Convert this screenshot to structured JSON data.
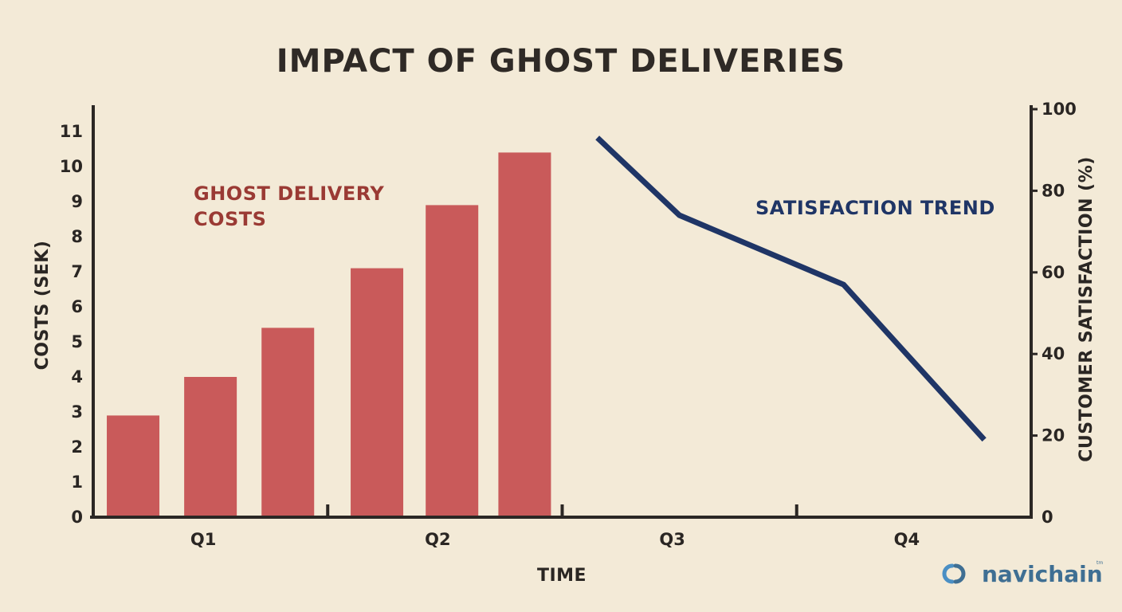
{
  "chart_data": {
    "type": "bar",
    "title": "IMPACT OF GHOST DELIVERIES",
    "xlabel": "TIME",
    "ylabel": "COSTS (SEK)",
    "y2label": "CUSTOMER SATISFACTION (%)",
    "categories": [
      "Q1",
      "Q2",
      "Q3",
      "Q4"
    ],
    "ylim": [
      0,
      11
    ],
    "y_ticks": [
      "0",
      "1",
      "2",
      "3",
      "4",
      "5",
      "6",
      "7",
      "8",
      "9",
      "10",
      "11"
    ],
    "y2lim": [
      0,
      100
    ],
    "y2_ticks": [
      "0",
      "20",
      "40",
      "60",
      "80",
      "100"
    ],
    "grid": false,
    "series": [
      {
        "name": "GHOST DELIVERY COSTS",
        "kind": "bar",
        "axis": "left",
        "color": "#c95a5a",
        "x": [
          0.17,
          0.5,
          0.83,
          1.21,
          1.53,
          1.84
        ],
        "values": [
          2.9,
          4.0,
          5.4,
          7.1,
          8.9,
          10.4
        ]
      },
      {
        "name": "SATISFACTION TREND",
        "kind": "line",
        "axis": "right",
        "color": "#1f3566",
        "x": [
          2.15,
          2.5,
          3.2,
          3.8
        ],
        "values": [
          93,
          74,
          57,
          19
        ]
      }
    ],
    "annotations": [
      {
        "lines": [
          "GHOST DELIVERY",
          "COSTS"
        ],
        "color": "#9a3a34",
        "position": "upper-left"
      },
      {
        "lines": [
          "SATISFACTION TREND"
        ],
        "color": "#1f3566",
        "position": "upper-right"
      }
    ]
  },
  "logo": {
    "text": "navichain",
    "mark": "tm"
  }
}
